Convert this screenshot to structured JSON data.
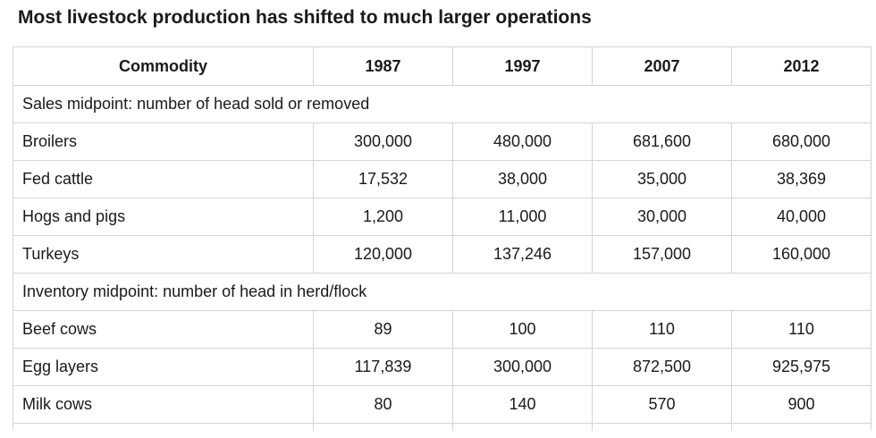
{
  "title": "Most livestock production has shifted to much larger operations",
  "table": {
    "headers": [
      "Commodity",
      "1987",
      "1997",
      "2007",
      "2012"
    ],
    "sections": [
      {
        "label": "Sales midpoint: number of head sold or removed",
        "rows": [
          {
            "name": "Broilers",
            "values": [
              "300,000",
              "480,000",
              "681,600",
              "680,000"
            ]
          },
          {
            "name": "Fed cattle",
            "values": [
              "17,532",
              "38,000",
              "35,000",
              "38,369"
            ]
          },
          {
            "name": "Hogs and pigs",
            "values": [
              "1,200",
              "11,000",
              "30,000",
              "40,000"
            ]
          },
          {
            "name": "Turkeys",
            "values": [
              "120,000",
              "137,246",
              "157,000",
              "160,000"
            ]
          }
        ]
      },
      {
        "label": "Inventory midpoint: number of head in herd/flock",
        "rows": [
          {
            "name": "Beef cows",
            "values": [
              "89",
              "100",
              "110",
              "110"
            ]
          },
          {
            "name": "Egg layers",
            "values": [
              "117,839",
              "300,000",
              "872,500",
              "925,975"
            ]
          },
          {
            "name": "Milk cows",
            "values": [
              "80",
              "140",
              "570",
              "900"
            ]
          }
        ]
      }
    ]
  }
}
